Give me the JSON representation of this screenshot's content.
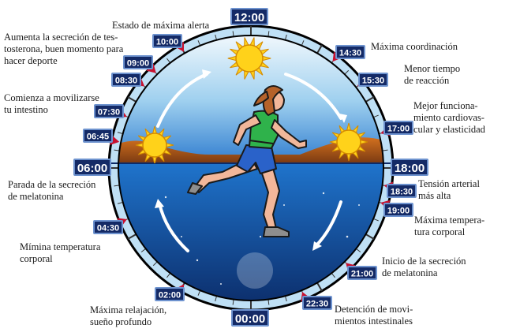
{
  "colors": {
    "sky_top": "#ffffff",
    "sky_bottom": "#2f7ccf",
    "night_top": "#1d6fc9",
    "night_bottom": "#0b2a66",
    "ring": "#bfe0f5",
    "label_bg": "#142a66",
    "label_border": "#6e93cf",
    "marker": "#c8102e",
    "sun": "#ffd21a",
    "runner_top": "#2fb24b",
    "runner_shorts": "#2a62c9"
  },
  "icons": [
    "sun-icon",
    "sunrise-icon",
    "sunset-icon",
    "moon-icon",
    "runner-figure",
    "clockwise-arrow-icon"
  ],
  "clock": {
    "big_labels": [
      {
        "id": "t1200",
        "text": "12:00"
      },
      {
        "id": "t0600",
        "text": "06:00"
      },
      {
        "id": "t1800",
        "text": "18:00"
      },
      {
        "id": "t0000",
        "text": "00:00"
      }
    ],
    "small_labels": [
      {
        "id": "t1000",
        "text": "10:00"
      },
      {
        "id": "t0900",
        "text": "09:00"
      },
      {
        "id": "t0830",
        "text": "08:30"
      },
      {
        "id": "t0730",
        "text": "07:30"
      },
      {
        "id": "t0645",
        "text": "06:45"
      },
      {
        "id": "t1430",
        "text": "14:30"
      },
      {
        "id": "t1530",
        "text": "15:30"
      },
      {
        "id": "t1700",
        "text": "17:00"
      },
      {
        "id": "t1830",
        "text": "18:30"
      },
      {
        "id": "t1900",
        "text": "19:00"
      },
      {
        "id": "t0430",
        "text": "04:30"
      },
      {
        "id": "t0200",
        "text": "02:00"
      },
      {
        "id": "t2100",
        "text": "21:00"
      },
      {
        "id": "t2230",
        "text": "22:30"
      }
    ]
  },
  "annotations": {
    "estado_alerta": "Estado de máxima alerta",
    "testosterona": "Aumenta la secreción de tes-\ntosterona, buen momento para\nhacer deporte",
    "intestino": "Comienza a movilizarse\ntu intestino",
    "melatonina_parada": "Parada de la secreción\nde melatonina",
    "minima_temp": "Mímina temperatura\ncorporal",
    "relajacion": "Máxima relajación,\nsueño profundo",
    "coordinacion": "Máxima coordinación",
    "reaccion": "Menor tiempo\nde reacción",
    "cardiovascular": "Mejor funciona-\nmiento cardiovas-\ncular y elasticidad",
    "tension": "Tensión arterial\nmás alta",
    "maxima_temp": "Máxima tempera-\ntura corporal",
    "melatonina_inicio": "Inicio de la secreción\nde melatonina",
    "intestinales": "Detención de movi-\nmientos intestinales"
  }
}
